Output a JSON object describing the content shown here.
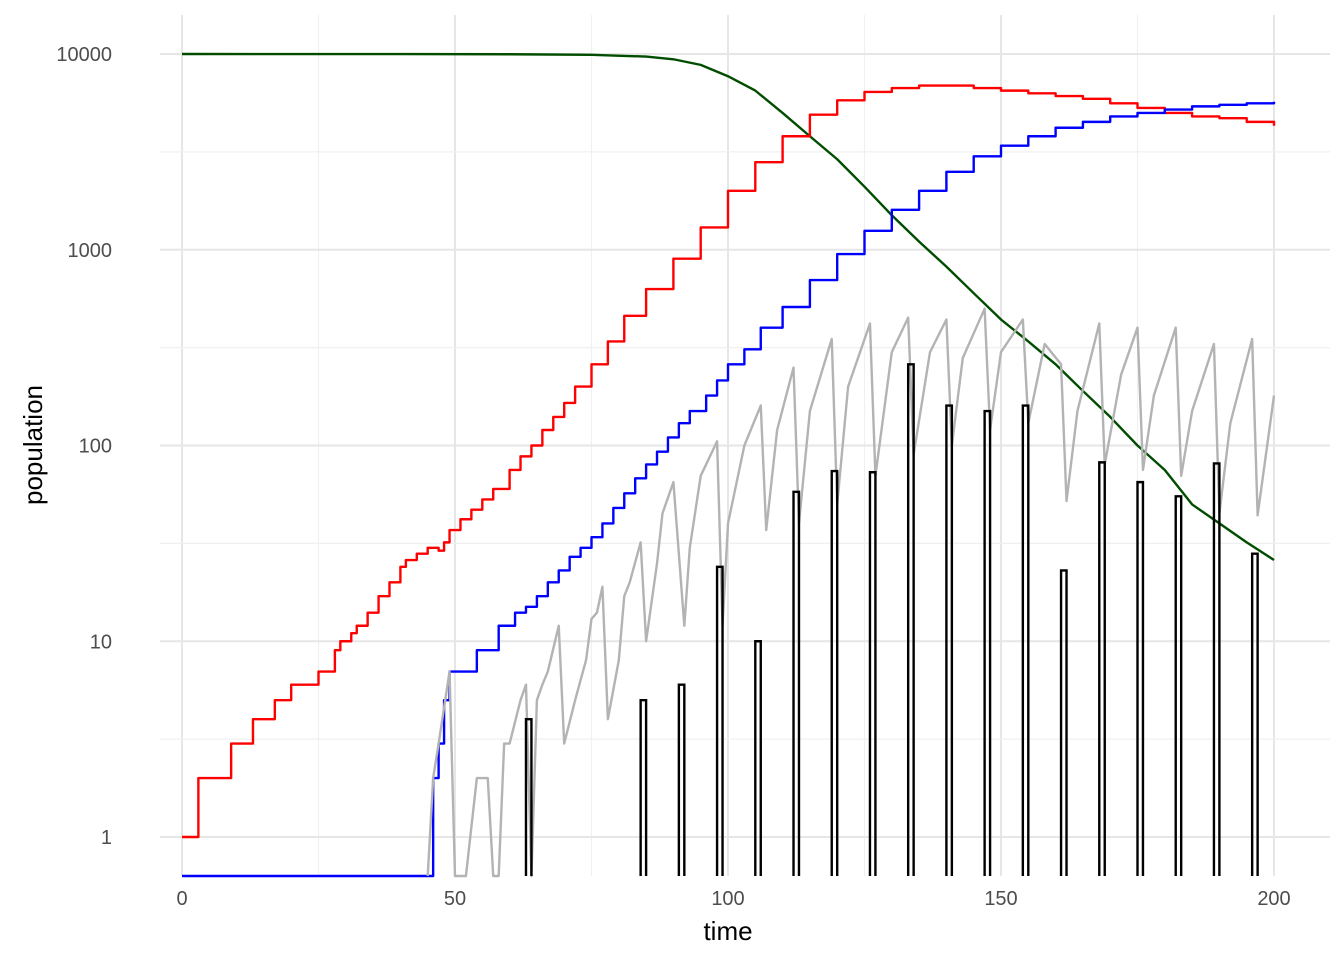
{
  "chart_data": {
    "type": "line",
    "title": "",
    "xlabel": "time",
    "ylabel": "population",
    "xlim": [
      0,
      200
    ],
    "ylim": [
      0.65,
      13000
    ],
    "y_scale": "log10",
    "x_ticks": [
      0,
      50,
      100,
      150,
      200
    ],
    "x_tick_labels": [
      "0",
      "50",
      "100",
      "150",
      "200"
    ],
    "y_ticks": [
      1,
      10,
      100,
      1000,
      10000
    ],
    "y_tick_labels": [
      "1",
      "10",
      "100",
      "1000",
      "10000"
    ],
    "grid": true,
    "legend": "none",
    "series": [
      {
        "color": "#004d00",
        "type": "line",
        "points": [
          [
            0,
            10000
          ],
          [
            40,
            9990
          ],
          [
            60,
            9970
          ],
          [
            75,
            9900
          ],
          [
            85,
            9700
          ],
          [
            90,
            9400
          ],
          [
            95,
            8800
          ],
          [
            100,
            7700
          ],
          [
            105,
            6500
          ],
          [
            110,
            5000
          ],
          [
            115,
            3800
          ],
          [
            120,
            2900
          ],
          [
            125,
            2100
          ],
          [
            130,
            1500
          ],
          [
            135,
            1100
          ],
          [
            140,
            820
          ],
          [
            145,
            600
          ],
          [
            150,
            440
          ],
          [
            155,
            340
          ],
          [
            160,
            260
          ],
          [
            165,
            190
          ],
          [
            170,
            140
          ],
          [
            175,
            100
          ],
          [
            180,
            75
          ],
          [
            185,
            50
          ],
          [
            190,
            40
          ],
          [
            195,
            32
          ],
          [
            200,
            26
          ]
        ]
      },
      {
        "color": "#ff0000",
        "type": "step",
        "points": [
          [
            0,
            1
          ],
          [
            3,
            2
          ],
          [
            9,
            3
          ],
          [
            13,
            4
          ],
          [
            17,
            5
          ],
          [
            20,
            6
          ],
          [
            25,
            7
          ],
          [
            28,
            9
          ],
          [
            29,
            10
          ],
          [
            31,
            11
          ],
          [
            32,
            12
          ],
          [
            34,
            14
          ],
          [
            36,
            17
          ],
          [
            38,
            20
          ],
          [
            40,
            24
          ],
          [
            41,
            26
          ],
          [
            43,
            28
          ],
          [
            45,
            30
          ],
          [
            47,
            29
          ],
          [
            48,
            32
          ],
          [
            49,
            37
          ],
          [
            51,
            42
          ],
          [
            53,
            47
          ],
          [
            55,
            53
          ],
          [
            57,
            60
          ],
          [
            60,
            75
          ],
          [
            62,
            88
          ],
          [
            64,
            100
          ],
          [
            66,
            120
          ],
          [
            68,
            140
          ],
          [
            70,
            165
          ],
          [
            72,
            200
          ],
          [
            75,
            260
          ],
          [
            78,
            340
          ],
          [
            81,
            460
          ],
          [
            85,
            630
          ],
          [
            90,
            900
          ],
          [
            95,
            1300
          ],
          [
            100,
            2000
          ],
          [
            105,
            2800
          ],
          [
            110,
            3800
          ],
          [
            115,
            4900
          ],
          [
            120,
            5800
          ],
          [
            125,
            6400
          ],
          [
            130,
            6700
          ],
          [
            135,
            6900
          ],
          [
            140,
            6900
          ],
          [
            145,
            6700
          ],
          [
            150,
            6500
          ],
          [
            155,
            6300
          ],
          [
            160,
            6100
          ],
          [
            165,
            5900
          ],
          [
            170,
            5600
          ],
          [
            175,
            5300
          ],
          [
            180,
            5000
          ],
          [
            185,
            4800
          ],
          [
            190,
            4700
          ],
          [
            195,
            4500
          ],
          [
            200,
            4300
          ]
        ]
      },
      {
        "color": "#0000ff",
        "type": "step",
        "points": [
          [
            0,
            0.6
          ],
          [
            45,
            0.6
          ],
          [
            46,
            2
          ],
          [
            47,
            3
          ],
          [
            48,
            5
          ],
          [
            49,
            7
          ],
          [
            54,
            9
          ],
          [
            58,
            12
          ],
          [
            61,
            14
          ],
          [
            63,
            15
          ],
          [
            65,
            17
          ],
          [
            67,
            20
          ],
          [
            69,
            23
          ],
          [
            71,
            27
          ],
          [
            73,
            30
          ],
          [
            75,
            34
          ],
          [
            77,
            40
          ],
          [
            79,
            48
          ],
          [
            81,
            57
          ],
          [
            83,
            68
          ],
          [
            85,
            80
          ],
          [
            87,
            93
          ],
          [
            89,
            110
          ],
          [
            91,
            130
          ],
          [
            93,
            150
          ],
          [
            96,
            180
          ],
          [
            98,
            215
          ],
          [
            100,
            260
          ],
          [
            103,
            310
          ],
          [
            106,
            400
          ],
          [
            110,
            510
          ],
          [
            115,
            700
          ],
          [
            120,
            950
          ],
          [
            125,
            1250
          ],
          [
            130,
            1600
          ],
          [
            135,
            2000
          ],
          [
            140,
            2500
          ],
          [
            145,
            3000
          ],
          [
            150,
            3400
          ],
          [
            155,
            3800
          ],
          [
            160,
            4200
          ],
          [
            165,
            4500
          ],
          [
            170,
            4800
          ],
          [
            175,
            5000
          ],
          [
            180,
            5200
          ],
          [
            185,
            5400
          ],
          [
            190,
            5500
          ],
          [
            195,
            5600
          ],
          [
            200,
            5700
          ]
        ]
      },
      {
        "color": "#b3b3b3",
        "type": "line",
        "points": [
          [
            45,
            0.6
          ],
          [
            46,
            2
          ],
          [
            47,
            3
          ],
          [
            49,
            7
          ],
          [
            50,
            0.6
          ],
          [
            51,
            0.6
          ],
          [
            52,
            0.6
          ],
          [
            54,
            2
          ],
          [
            56,
            2
          ],
          [
            57,
            0.6
          ],
          [
            58,
            0.6
          ],
          [
            59,
            3
          ],
          [
            60,
            3
          ],
          [
            62,
            5
          ],
          [
            63,
            6
          ],
          [
            64,
            0.6
          ],
          [
            65,
            5
          ],
          [
            66,
            6
          ],
          [
            67,
            7
          ],
          [
            69,
            12
          ],
          [
            70,
            3
          ],
          [
            72,
            5
          ],
          [
            74,
            8
          ],
          [
            75,
            13
          ],
          [
            76,
            14
          ],
          [
            77,
            19
          ],
          [
            78,
            4
          ],
          [
            80,
            8
          ],
          [
            81,
            17
          ],
          [
            82,
            20
          ],
          [
            84,
            32
          ],
          [
            85,
            10
          ],
          [
            87,
            25
          ],
          [
            88,
            45
          ],
          [
            90,
            65
          ],
          [
            92,
            12
          ],
          [
            93,
            30
          ],
          [
            95,
            70
          ],
          [
            98,
            105
          ],
          [
            99,
            12
          ],
          [
            100,
            40
          ],
          [
            103,
            100
          ],
          [
            106,
            160
          ],
          [
            107,
            37
          ],
          [
            109,
            120
          ],
          [
            112,
            250
          ],
          [
            113,
            40
          ],
          [
            115,
            150
          ],
          [
            119,
            350
          ],
          [
            120,
            50
          ],
          [
            122,
            200
          ],
          [
            126,
            420
          ],
          [
            127,
            70
          ],
          [
            130,
            300
          ],
          [
            133,
            450
          ],
          [
            134,
            90
          ],
          [
            137,
            300
          ],
          [
            140,
            440
          ],
          [
            141,
            100
          ],
          [
            143,
            280
          ],
          [
            147,
            500
          ],
          [
            148,
            120
          ],
          [
            150,
            300
          ],
          [
            154,
            440
          ],
          [
            155,
            130
          ],
          [
            158,
            330
          ],
          [
            161,
            260
          ],
          [
            162,
            52
          ],
          [
            164,
            150
          ],
          [
            168,
            420
          ],
          [
            169,
            80
          ],
          [
            172,
            230
          ],
          [
            175,
            400
          ],
          [
            176,
            75
          ],
          [
            178,
            180
          ],
          [
            182,
            400
          ],
          [
            183,
            70
          ],
          [
            185,
            150
          ],
          [
            189,
            330
          ],
          [
            190,
            45
          ],
          [
            192,
            130
          ],
          [
            196,
            350
          ],
          [
            197,
            44
          ],
          [
            200,
            180
          ]
        ]
      },
      {
        "color": "#000000",
        "type": "bar",
        "bar_width": 1,
        "x": [
          63,
          84,
          91,
          98,
          105,
          112,
          119,
          126,
          133,
          140,
          147,
          154,
          161,
          168,
          175,
          182,
          189,
          196
        ],
        "values": [
          4,
          5,
          6,
          24,
          10,
          58,
          74,
          73,
          260,
          160,
          150,
          160,
          23,
          82,
          65,
          55,
          81,
          28
        ]
      }
    ]
  }
}
